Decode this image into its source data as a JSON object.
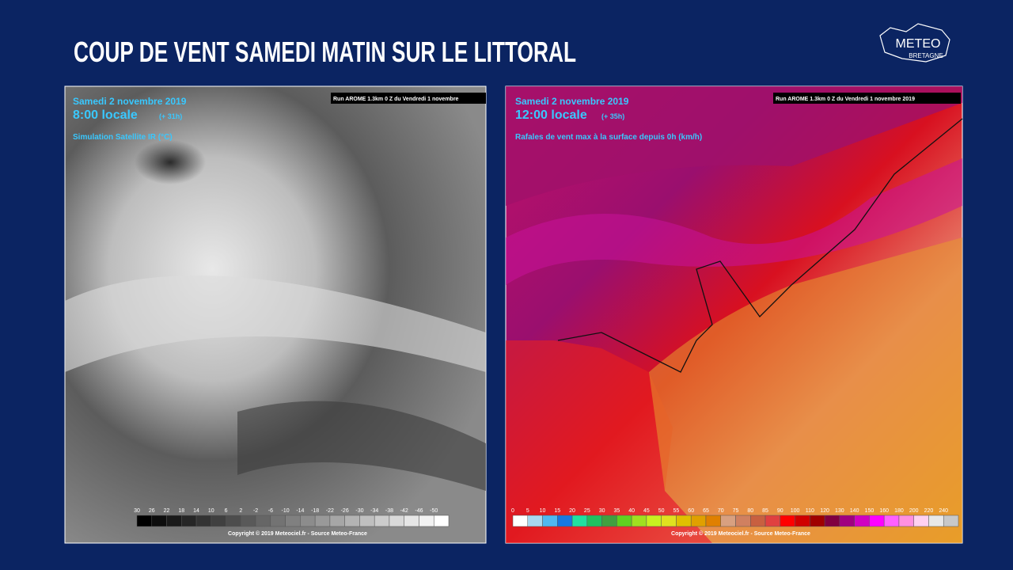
{
  "header": {
    "title": "COUP DE VENT SAMEDI MATIN SUR LE LITTORAL",
    "logo": {
      "line1": "METEO",
      "line2": "BRETAGNE"
    }
  },
  "left_panel": {
    "date": "Samedi 2 novembre 2019",
    "time": "8:00 locale",
    "lead": "(+ 31h)",
    "product": "Simulation Satellite IR (°C)",
    "run": "Run AROME 1.3km 0 Z du Vendredi 1 novembre",
    "scale_labels": [
      "30",
      "26",
      "22",
      "18",
      "14",
      "10",
      "6",
      "2",
      "-2",
      "-6",
      "-10",
      "-14",
      "-18",
      "-22",
      "-26",
      "-30",
      "-34",
      "-38",
      "-42",
      "-46",
      "-50"
    ],
    "copyright": "Copyright © 2019 Meteociel.fr - Source Meteo-France"
  },
  "right_panel": {
    "date": "Samedi 2 novembre 2019",
    "time": "12:00 locale",
    "lead": "(+ 35h)",
    "product": "Rafales de vent max à la surface depuis 0h (km/h)",
    "run": "Run AROME 1.3km 0 Z du Vendredi 1 novembre 2019",
    "scale_labels": [
      "0",
      "5",
      "10",
      "15",
      "20",
      "25",
      "30",
      "35",
      "40",
      "45",
      "50",
      "55",
      "60",
      "65",
      "70",
      "75",
      "80",
      "85",
      "90",
      "100",
      "110",
      "120",
      "130",
      "140",
      "150",
      "160",
      "180",
      "200",
      "220",
      "240"
    ],
    "copyright": "Copyright © 2019 Meteociel.fr - Source Meteo-France"
  }
}
